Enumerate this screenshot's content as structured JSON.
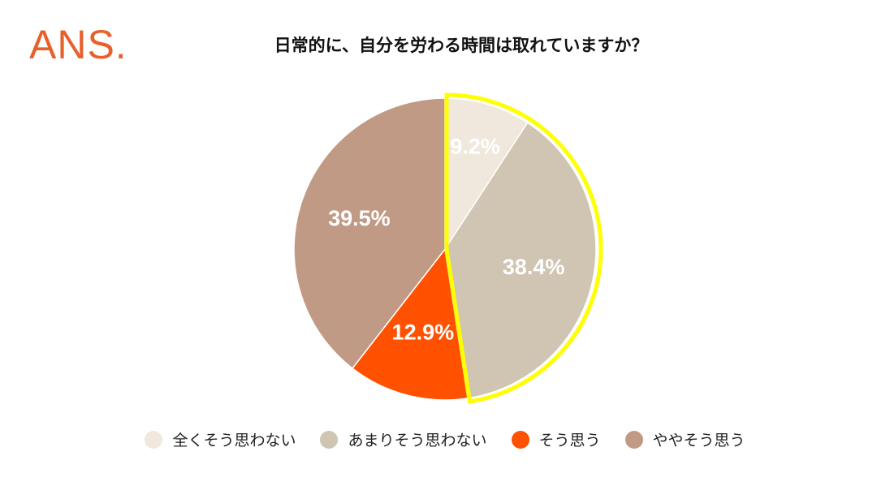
{
  "logo": {
    "text": "ANS.",
    "color": "#e8612b"
  },
  "chart_data": {
    "type": "pie",
    "title": "日常的に、自分を労わる時間は取れていますか？",
    "slices": [
      {
        "label": "全くそう思わない",
        "value": 9.2,
        "value_label": "9.2%",
        "color": "#f0e8dc"
      },
      {
        "label": "あまりそう思わない",
        "value": 38.4,
        "value_label": "38.4%",
        "color": "#d0c4b2"
      },
      {
        "label": "そう思う",
        "value": 12.9,
        "value_label": "12.9%",
        "color": "#ff5100"
      },
      {
        "label": "ややそう思う",
        "value": 39.5,
        "value_label": "39.5%",
        "color": "#c09a84"
      }
    ],
    "highlight_slices": [
      0,
      1
    ],
    "highlight_color": "#ffff00",
    "legend_position": "bottom"
  }
}
